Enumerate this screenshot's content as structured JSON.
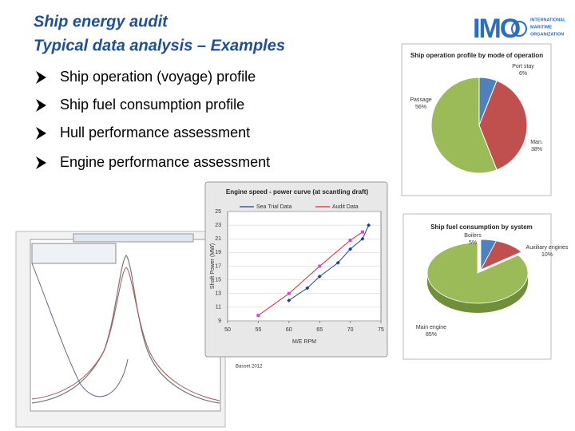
{
  "header": {
    "title": [
      "Ship energy audit",
      "Typical data analysis – Examples"
    ],
    "logo": {
      "mark": "IMO",
      "org": [
        "INTERNATIONAL",
        "MARITIME",
        "ORGANIZATION"
      ]
    }
  },
  "bullets": [
    "Ship operation (voyage) profile",
    "Ship fuel consumption profile",
    "Hull performance assessment",
    "Engine performance assessment"
  ],
  "chart_data": [
    {
      "type": "pie",
      "title": "Ship operation profile by mode of operation",
      "categories": [
        "Port stay",
        "Man.",
        "Passage"
      ],
      "values": [
        6,
        38,
        56
      ],
      "value_labels": [
        "6%",
        "38%",
        "56%"
      ],
      "colors": [
        "#4f81bd",
        "#c0504d",
        "#9bbb59"
      ]
    },
    {
      "type": "pie3d",
      "title": "Ship fuel consumption by system",
      "categories": [
        "Boilers",
        "Auxiliary engines",
        "Main engine"
      ],
      "values": [
        5,
        10,
        85
      ],
      "value_labels": [
        "5%",
        "10%",
        "85%"
      ],
      "colors": [
        "#4f81bd",
        "#c0504d",
        "#9bbb59"
      ]
    },
    {
      "type": "line",
      "title": "Engine speed - power curve (at scantling draft)",
      "x_label": "M/E RPM",
      "y_label": "Shaft Power (MW)",
      "xlim": [
        50,
        75
      ],
      "xticks": [
        50,
        55,
        60,
        65,
        70,
        75
      ],
      "ylim": [
        9,
        25
      ],
      "yticks": [
        9,
        11,
        13,
        15,
        17,
        19,
        21,
        23,
        25
      ],
      "grid": true,
      "series": [
        {
          "name": "Sea Trial Data",
          "color": "#1f3f8f",
          "x": [
            60,
            63,
            65,
            68,
            70,
            72,
            73
          ],
          "values": [
            12,
            13.8,
            15.5,
            17.5,
            19.5,
            21,
            23
          ]
        },
        {
          "name": "Audit Data",
          "color": "#e8202a",
          "x": [
            55,
            60,
            65,
            70,
            72
          ],
          "values": [
            9.8,
            13,
            17,
            20.8,
            22
          ]
        }
      ]
    }
  ],
  "caption": "Basset 2012"
}
